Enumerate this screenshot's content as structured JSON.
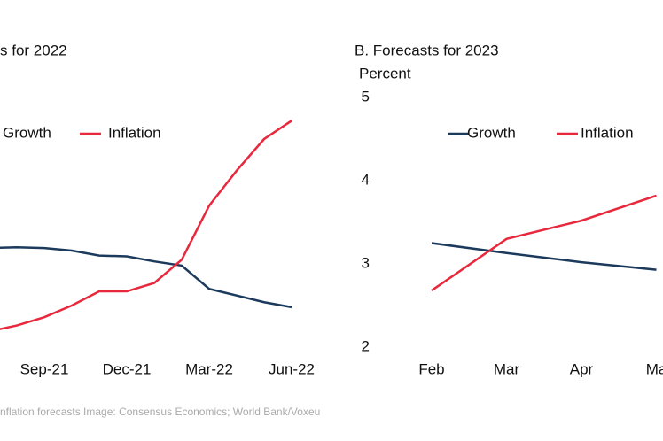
{
  "chart_data": [
    {
      "type": "line",
      "title": "s for 2022",
      "categories": [
        null,
        null,
        "Sep-21",
        null,
        null,
        "Dec-21",
        null,
        null,
        "Mar-22",
        null,
        null,
        "Jun-22"
      ],
      "series": [
        {
          "name": "Growth",
          "color": "#1b3a5c",
          "values": [
            3.19,
            3.2,
            3.19,
            3.16,
            3.1,
            3.09,
            3.03,
            2.98,
            2.7,
            2.62,
            2.54,
            2.48
          ]
        },
        {
          "name": "Inflation",
          "color": "#e8283c",
          "values": [
            2.19,
            2.26,
            2.36,
            2.5,
            2.67,
            2.67,
            2.77,
            3.05,
            3.7,
            4.12,
            4.5,
            4.72
          ]
        }
      ],
      "ylim": [
        2,
        5
      ]
    },
    {
      "type": "line",
      "title": "B. Forecasts for 2023",
      "y_label": "Percent",
      "categories": [
        "Feb",
        "Mar",
        "Apr",
        "Ma"
      ],
      "series": [
        {
          "name": "Growth",
          "color": "#1b3a5c",
          "values": [
            3.25,
            3.13,
            3.02,
            2.93
          ]
        },
        {
          "name": "Inflation",
          "color": "#e8283c",
          "values": [
            2.68,
            3.3,
            3.52,
            3.82
          ]
        }
      ],
      "ylim": [
        2,
        5
      ],
      "yticks": [
        2,
        3,
        4,
        5
      ]
    }
  ],
  "caption": "nflation forecasts Image: Consensus Economics; World Bank/Voxeu"
}
